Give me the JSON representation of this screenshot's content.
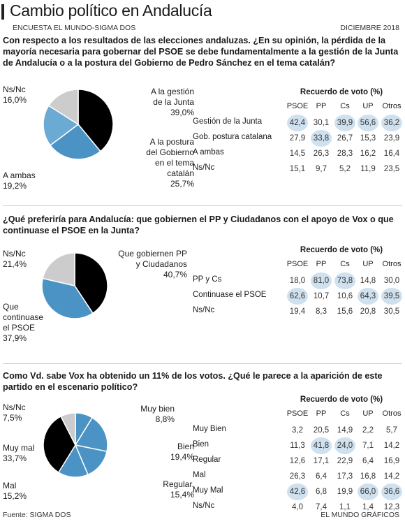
{
  "header": {
    "title": "Cambio político en Andalucía",
    "source_left": "ENCUESTA EL MUNDO-SIGMA DOS",
    "date": "DICIEMBRE 2018"
  },
  "colors": {
    "black": "#000000",
    "mid": "#4a93c4",
    "light": "#8fbfdf",
    "grey": "#cccccc",
    "highlight": "#cfe0ee"
  },
  "table_header": "Recuerdo de voto (%)",
  "columns": [
    "PSOE",
    "PP",
    "Cs",
    "UP",
    "Otros"
  ],
  "footer": {
    "left": "Fuente: SIGMA DOS",
    "right": "EL MUNDO GRÁFICOS"
  },
  "sections": [
    {
      "question": "Con respecto a los resultados de las elecciones andaluzas. ¿En su opinión, la pérdida de la mayoría necesaria para gobernar del PSOE se debe fundamentalmente a la gestión de la Junta de Andalucía o a la postura del Gobierno de Pedro Sánchez en el tema catalán?",
      "pie_labels": [
        {
          "text": "A la gestión\nde la Junta\n39,0%"
        },
        {
          "text": "A la postura\ndel Gobierno\nen el tema\ncatalán\n25,7%"
        },
        {
          "text": "A ambas\n19,2%"
        },
        {
          "text": "Ns/Nc\n16,0%"
        }
      ],
      "rows": [
        {
          "label": "Gestión de la Junta",
          "values": [
            "42,4",
            "30,1",
            "39,9",
            "56,6",
            "36,2"
          ],
          "hl": [
            true,
            false,
            true,
            true,
            true
          ]
        },
        {
          "label": "Gob. postura catalana",
          "values": [
            "27,9",
            "33,8",
            "26,7",
            "15,3",
            "23,9"
          ],
          "hl": [
            false,
            true,
            false,
            false,
            false
          ]
        },
        {
          "label": "A ambas",
          "values": [
            "14,5",
            "26,3",
            "28,3",
            "16,2",
            "16,4"
          ],
          "hl": [
            false,
            false,
            false,
            false,
            false
          ]
        },
        {
          "label": "Ns/Nc",
          "values": [
            "15,1",
            "9,7",
            "5,2",
            "11,9",
            "23,5"
          ],
          "hl": [
            false,
            false,
            false,
            false,
            false
          ]
        }
      ]
    },
    {
      "question": "¿Qué preferiría para Andalucía: que gobiernen el PP y Ciudadanos con el apoyo de Vox o que continuase el PSOE en la Junta?",
      "pie_labels": [
        {
          "text": "Que gobiernen PP\ny Ciudadanos\n40,7%"
        },
        {
          "text": "Que\ncontinuase\nel PSOE\n37,9%"
        },
        {
          "text": "Ns/Nc\n21,4%"
        }
      ],
      "rows": [
        {
          "label": "PP y Cs",
          "values": [
            "18,0",
            "81,0",
            "73,8",
            "14,8",
            "30,0"
          ],
          "hl": [
            false,
            true,
            true,
            false,
            false
          ]
        },
        {
          "label": "Continuase el PSOE",
          "values": [
            "62,6",
            "10,7",
            "10,6",
            "64,3",
            "39,5"
          ],
          "hl": [
            true,
            false,
            false,
            true,
            true
          ]
        },
        {
          "label": "Ns/Nc",
          "values": [
            "19,4",
            "8,3",
            "15,6",
            "20,8",
            "30,5"
          ],
          "hl": [
            false,
            false,
            false,
            false,
            false
          ]
        }
      ]
    },
    {
      "question": "Como Vd. sabe Vox ha obtenido un 11% de los votos. ¿Qué le parece a la aparición de este partido en el escenario político?",
      "pie_labels": [
        {
          "text": "Muy bien\n8,8%"
        },
        {
          "text": "Bien\n19,4%"
        },
        {
          "text": "Regular.\n15,4%"
        },
        {
          "text": "Mal\n15,2%"
        },
        {
          "text": "Muy mal\n33,7%"
        },
        {
          "text": "Ns/Nc\n7,5%"
        }
      ],
      "rows": [
        {
          "label": "Muy Bien",
          "values": [
            "3,2",
            "20,5",
            "14,9",
            "2,2",
            "5,7"
          ],
          "hl": [
            false,
            false,
            false,
            false,
            false
          ]
        },
        {
          "label": "Bien",
          "values": [
            "11,3",
            "41,8",
            "24,0",
            "7,1",
            "14,2"
          ],
          "hl": [
            false,
            true,
            true,
            false,
            false
          ]
        },
        {
          "label": "Regular",
          "values": [
            "12,6",
            "17,1",
            "22,9",
            "6,4",
            "16,9"
          ],
          "hl": [
            false,
            false,
            false,
            false,
            false
          ]
        },
        {
          "label": "Mal",
          "values": [
            "26,3",
            "6,4",
            "17,3",
            "16,8",
            "14,2"
          ],
          "hl": [
            false,
            false,
            false,
            false,
            false
          ]
        },
        {
          "label": "Muy Mal",
          "values": [
            "42,6",
            "6,8",
            "19,9",
            "66,0",
            "36,6"
          ],
          "hl": [
            true,
            false,
            false,
            true,
            true
          ]
        },
        {
          "label": "Ns/Nc",
          "values": [
            "4,0",
            "7,4",
            "1,1",
            "1,4",
            "12,3"
          ],
          "hl": [
            false,
            false,
            false,
            false,
            false
          ]
        }
      ]
    }
  ],
  "chart_data": [
    {
      "type": "pie",
      "labels": [
        "A la gestión de la Junta",
        "A la postura del Gobierno en el tema catalán",
        "A ambas",
        "Ns/Nc"
      ],
      "values": [
        39.0,
        25.7,
        19.2,
        16.0
      ],
      "colors": [
        "#000000",
        "#4a93c4",
        "#6aaad3",
        "#cccccc"
      ]
    },
    {
      "type": "pie",
      "labels": [
        "Que gobiernen PP y Ciudadanos",
        "Que continuase el PSOE",
        "Ns/Nc"
      ],
      "values": [
        40.7,
        37.9,
        21.4
      ],
      "colors": [
        "#000000",
        "#4a93c4",
        "#cccccc"
      ]
    },
    {
      "type": "pie",
      "labels": [
        "Muy bien",
        "Bien",
        "Regular.",
        "Mal",
        "Muy mal",
        "Ns/Nc"
      ],
      "values": [
        8.8,
        19.4,
        15.4,
        15.2,
        33.7,
        7.5
      ],
      "colors": [
        "#4a93c4",
        "#4a93c4",
        "#4a93c4",
        "#4a93c4",
        "#000000",
        "#cccccc"
      ]
    },
    {
      "type": "table",
      "columns": [
        "PSOE",
        "PP",
        "Cs",
        "UP",
        "Otros"
      ],
      "rows": [
        "Gestión de la Junta",
        "Gob. postura catalana",
        "A ambas",
        "Ns/Nc"
      ],
      "values": [
        [
          42.4,
          30.1,
          39.9,
          56.6,
          36.2
        ],
        [
          27.9,
          33.8,
          26.7,
          15.3,
          23.9
        ],
        [
          14.5,
          26.3,
          28.3,
          16.2,
          16.4
        ],
        [
          15.1,
          9.7,
          5.2,
          11.9,
          23.5
        ]
      ]
    },
    {
      "type": "table",
      "columns": [
        "PSOE",
        "PP",
        "Cs",
        "UP",
        "Otros"
      ],
      "rows": [
        "PP y Cs",
        "Continuase el PSOE",
        "Ns/Nc"
      ],
      "values": [
        [
          18.0,
          81.0,
          73.8,
          14.8,
          30.0
        ],
        [
          62.6,
          10.7,
          10.6,
          64.3,
          39.5
        ],
        [
          19.4,
          8.3,
          15.6,
          20.8,
          30.5
        ]
      ]
    },
    {
      "type": "table",
      "columns": [
        "PSOE",
        "PP",
        "Cs",
        "UP",
        "Otros"
      ],
      "rows": [
        "Muy Bien",
        "Bien",
        "Regular",
        "Mal",
        "Muy Mal",
        "Ns/Nc"
      ],
      "values": [
        [
          3.2,
          20.5,
          14.9,
          2.2,
          5.7
        ],
        [
          11.3,
          41.8,
          24.0,
          7.1,
          14.2
        ],
        [
          12.6,
          17.1,
          22.9,
          6.4,
          16.9
        ],
        [
          26.3,
          6.4,
          17.3,
          16.8,
          14.2
        ],
        [
          42.6,
          6.8,
          19.9,
          66.0,
          36.6
        ],
        [
          4.0,
          7.4,
          1.1,
          1.4,
          12.3
        ]
      ]
    }
  ]
}
